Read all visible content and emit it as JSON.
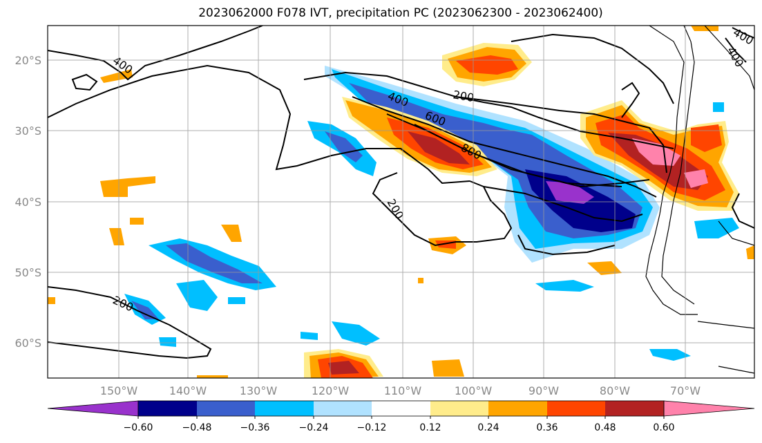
{
  "title": "2023062000 F078 IVT, precipitation PC (2023062300 - 2023062400)",
  "lat_ticks": [
    "20°S",
    "30°S",
    "40°S",
    "50°S",
    "60°S"
  ],
  "lon_ticks": [
    "150°W",
    "140°W",
    "130°W",
    "120°W",
    "110°W",
    "100°W",
    "90°W",
    "80°W",
    "70°W"
  ],
  "contour_labels": [
    "400",
    "200",
    "400",
    "600",
    "800",
    "200",
    "200",
    "400",
    "400"
  ],
  "colorbar": {
    "tick_labels": [
      "−0.60",
      "−0.48",
      "−0.36",
      "−0.24",
      "−0.12",
      "0.12",
      "0.24",
      "0.36",
      "0.48",
      "0.60"
    ],
    "colors": [
      "#9932cc",
      "#00008b",
      "#3a5fcd",
      "#00bfff",
      "#b0e2ff",
      "#ffffff",
      "#ffec8b",
      "#ffa500",
      "#ff4500",
      "#b22222",
      "#ff82ab"
    ]
  }
}
